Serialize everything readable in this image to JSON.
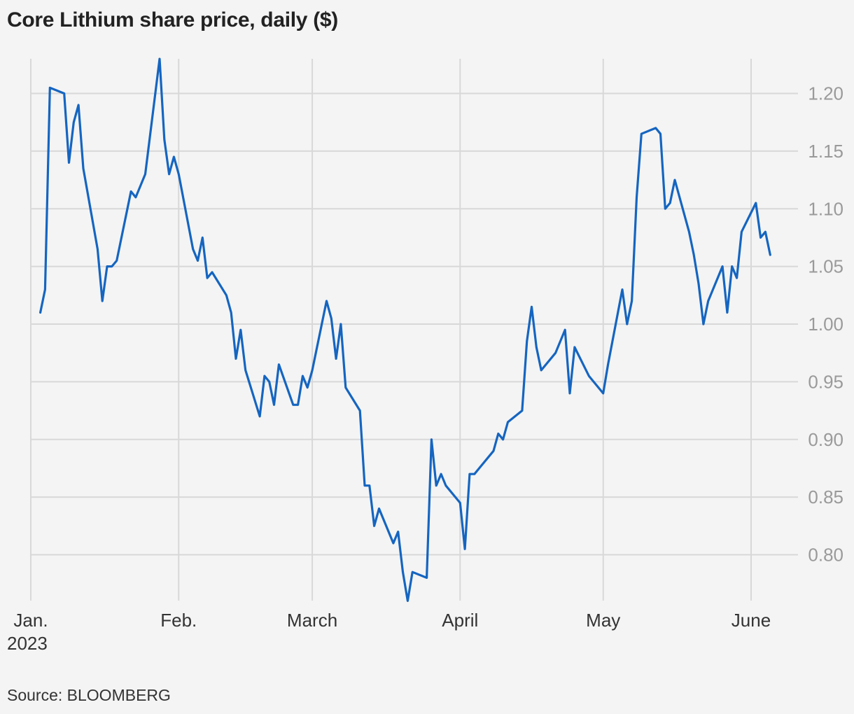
{
  "title": "Core Lithium share price, daily ($)",
  "source": "Source: BLOOMBERG",
  "colors": {
    "line": "#1565c0",
    "background": "#f4f4f4",
    "grid": "#d8d8d8"
  },
  "chart_data": {
    "type": "line",
    "title": "Core Lithium share price, daily ($)",
    "ylim": [
      0.76,
      1.23
    ],
    "y_ticks": [
      0.8,
      0.85,
      0.9,
      0.95,
      1.0,
      1.05,
      1.1,
      1.15,
      1.2
    ],
    "y_tick_labels": [
      "0.80",
      "0.85",
      "0.90",
      "0.95",
      "1.00",
      "1.05",
      "1.10",
      "1.15",
      "1.20"
    ],
    "y_axis_position": "right",
    "grid": true,
    "x_ticks": [
      {
        "date": "2023-01-01",
        "label": "Jan.",
        "sublabel": "2023"
      },
      {
        "date": "2023-02-01",
        "label": "Feb."
      },
      {
        "date": "2023-03-01",
        "label": "March"
      },
      {
        "date": "2023-04-01",
        "label": "April"
      },
      {
        "date": "2023-05-01",
        "label": "May"
      },
      {
        "date": "2023-06-01",
        "label": "June"
      }
    ],
    "series": [
      {
        "points": [
          [
            "2023-01-03",
            1.01
          ],
          [
            "2023-01-04",
            1.03
          ],
          [
            "2023-01-05",
            1.205
          ],
          [
            "2023-01-08",
            1.2
          ],
          [
            "2023-01-09",
            1.14
          ],
          [
            "2023-01-10",
            1.175
          ],
          [
            "2023-01-11",
            1.19
          ],
          [
            "2023-01-12",
            1.135
          ],
          [
            "2023-01-15",
            1.065
          ],
          [
            "2023-01-16",
            1.02
          ],
          [
            "2023-01-17",
            1.05
          ],
          [
            "2023-01-18",
            1.05
          ],
          [
            "2023-01-19",
            1.055
          ],
          [
            "2023-01-22",
            1.115
          ],
          [
            "2023-01-23",
            1.11
          ],
          [
            "2023-01-24",
            1.12
          ],
          [
            "2023-01-25",
            1.13
          ],
          [
            "2023-01-28",
            1.23
          ],
          [
            "2023-01-29",
            1.16
          ],
          [
            "2023-01-30",
            1.13
          ],
          [
            "2023-01-31",
            1.145
          ],
          [
            "2023-02-01",
            1.13
          ],
          [
            "2023-02-04",
            1.065
          ],
          [
            "2023-02-05",
            1.055
          ],
          [
            "2023-02-06",
            1.075
          ],
          [
            "2023-02-07",
            1.04
          ],
          [
            "2023-02-08",
            1.045
          ],
          [
            "2023-02-11",
            1.025
          ],
          [
            "2023-02-12",
            1.01
          ],
          [
            "2023-02-13",
            0.97
          ],
          [
            "2023-02-14",
            0.995
          ],
          [
            "2023-02-15",
            0.96
          ],
          [
            "2023-02-18",
            0.92
          ],
          [
            "2023-02-19",
            0.955
          ],
          [
            "2023-02-20",
            0.95
          ],
          [
            "2023-02-21",
            0.93
          ],
          [
            "2023-02-22",
            0.965
          ],
          [
            "2023-02-25",
            0.93
          ],
          [
            "2023-02-26",
            0.93
          ],
          [
            "2023-02-27",
            0.955
          ],
          [
            "2023-02-28",
            0.945
          ],
          [
            "2023-03-01",
            0.96
          ],
          [
            "2023-03-04",
            1.02
          ],
          [
            "2023-03-05",
            1.005
          ],
          [
            "2023-03-06",
            0.97
          ],
          [
            "2023-03-07",
            1.0
          ],
          [
            "2023-03-08",
            0.945
          ],
          [
            "2023-03-11",
            0.925
          ],
          [
            "2023-03-12",
            0.86
          ],
          [
            "2023-03-13",
            0.86
          ],
          [
            "2023-03-14",
            0.825
          ],
          [
            "2023-03-15",
            0.84
          ],
          [
            "2023-03-18",
            0.81
          ],
          [
            "2023-03-19",
            0.82
          ],
          [
            "2023-03-20",
            0.785
          ],
          [
            "2023-03-21",
            0.76
          ],
          [
            "2023-03-22",
            0.785
          ],
          [
            "2023-03-25",
            0.78
          ],
          [
            "2023-03-26",
            0.9
          ],
          [
            "2023-03-27",
            0.86
          ],
          [
            "2023-03-28",
            0.87
          ],
          [
            "2023-03-29",
            0.86
          ],
          [
            "2023-04-01",
            0.845
          ],
          [
            "2023-04-02",
            0.805
          ],
          [
            "2023-04-03",
            0.87
          ],
          [
            "2023-04-04",
            0.87
          ],
          [
            "2023-04-05",
            0.875
          ],
          [
            "2023-04-08",
            0.89
          ],
          [
            "2023-04-09",
            0.905
          ],
          [
            "2023-04-10",
            0.9
          ],
          [
            "2023-04-11",
            0.915
          ],
          [
            "2023-04-14",
            0.925
          ],
          [
            "2023-04-15",
            0.985
          ],
          [
            "2023-04-16",
            1.015
          ],
          [
            "2023-04-17",
            0.98
          ],
          [
            "2023-04-18",
            0.96
          ],
          [
            "2023-04-21",
            0.975
          ],
          [
            "2023-04-22",
            0.985
          ],
          [
            "2023-04-23",
            0.995
          ],
          [
            "2023-04-24",
            0.94
          ],
          [
            "2023-04-25",
            0.98
          ],
          [
            "2023-04-28",
            0.955
          ],
          [
            "2023-05-01",
            0.94
          ],
          [
            "2023-05-02",
            0.965
          ],
          [
            "2023-05-05",
            1.03
          ],
          [
            "2023-05-06",
            1.0
          ],
          [
            "2023-05-07",
            1.02
          ],
          [
            "2023-05-08",
            1.11
          ],
          [
            "2023-05-09",
            1.165
          ],
          [
            "2023-05-12",
            1.17
          ],
          [
            "2023-05-13",
            1.165
          ],
          [
            "2023-05-14",
            1.1
          ],
          [
            "2023-05-15",
            1.105
          ],
          [
            "2023-05-16",
            1.125
          ],
          [
            "2023-05-19",
            1.08
          ],
          [
            "2023-05-20",
            1.06
          ],
          [
            "2023-05-21",
            1.035
          ],
          [
            "2023-05-22",
            1.0
          ],
          [
            "2023-05-23",
            1.02
          ],
          [
            "2023-05-26",
            1.05
          ],
          [
            "2023-05-27",
            1.01
          ],
          [
            "2023-05-28",
            1.05
          ],
          [
            "2023-05-29",
            1.04
          ],
          [
            "2023-05-30",
            1.08
          ],
          [
            "2023-06-02",
            1.105
          ],
          [
            "2023-06-03",
            1.075
          ],
          [
            "2023-06-04",
            1.08
          ],
          [
            "2023-06-05",
            1.06
          ]
        ]
      }
    ]
  }
}
